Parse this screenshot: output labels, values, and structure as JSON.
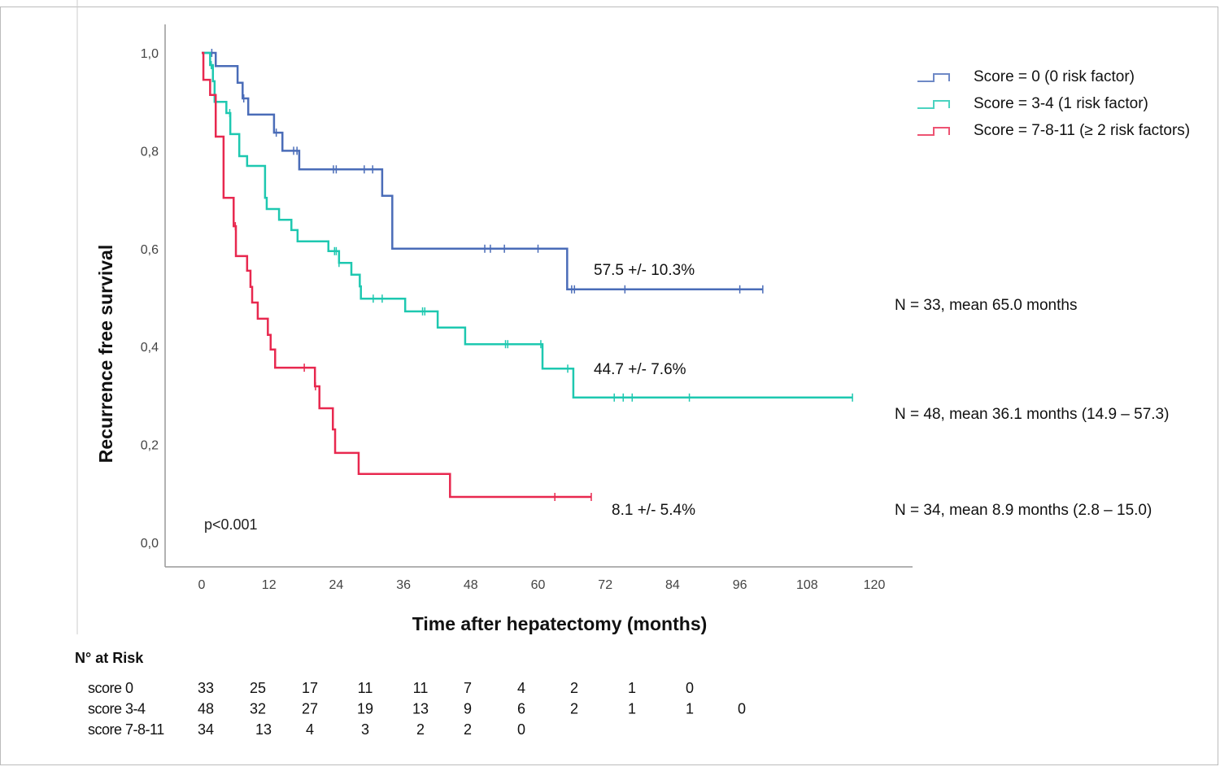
{
  "chart_data": {
    "type": "line",
    "subtype": "kaplan-meier step",
    "ylabel": "Recurrence free survival",
    "xlabel": "Time after hepatectomy (months)",
    "xlim": [
      0,
      120
    ],
    "ylim": [
      0,
      1
    ],
    "x_ticks": [
      "0",
      "12",
      "24",
      "36",
      "48",
      "60",
      "72",
      "84",
      "96",
      "108",
      "120"
    ],
    "y_ticks": [
      "0,0",
      "0,2",
      "0,4",
      "0,6",
      "0,8",
      "1,0"
    ],
    "grid": false,
    "legend_placement": "top-right",
    "p_value": "p<0.001",
    "series": [
      {
        "name": "Score = 0 (0 risk factor)",
        "color": "#4a6cb8",
        "steps": [
          [
            0,
            1.0
          ],
          [
            2.5,
            0.973
          ],
          [
            6.4,
            0.939
          ],
          [
            7.3,
            0.907
          ],
          [
            8.3,
            0.874
          ],
          [
            12.9,
            0.837
          ],
          [
            14.4,
            0.8
          ],
          [
            17.4,
            0.762
          ],
          [
            32.2,
            0.708
          ],
          [
            34,
            0.6
          ],
          [
            65.2,
            0.517
          ]
        ],
        "end": 100.1,
        "censored": [
          1.8,
          7.5,
          13.3,
          16.4,
          17,
          23.5,
          24,
          29,
          30.5,
          50.5,
          51.5,
          54,
          60,
          66,
          66.5,
          75.5,
          96,
          100.1
        ],
        "annotation": "57.5 +/- 10.3%",
        "summary": "N = 33, mean 65.0 months"
      },
      {
        "name": "Score = 3-4 (1 risk factor)",
        "color": "#1ec8b0",
        "steps": [
          [
            0,
            1.0
          ],
          [
            1.5,
            0.975
          ],
          [
            2,
            0.942
          ],
          [
            2.3,
            0.9
          ],
          [
            4.4,
            0.877
          ],
          [
            5.1,
            0.834
          ],
          [
            6.7,
            0.789
          ],
          [
            8.1,
            0.769
          ],
          [
            11.3,
            0.704
          ],
          [
            11.6,
            0.681
          ],
          [
            13.8,
            0.659
          ],
          [
            16,
            0.638
          ],
          [
            17.1,
            0.615
          ],
          [
            22.6,
            0.595
          ],
          [
            24.5,
            0.571
          ],
          [
            26.7,
            0.547
          ],
          [
            28.2,
            0.523
          ],
          [
            28.4,
            0.498
          ],
          [
            36.3,
            0.472
          ],
          [
            42.1,
            0.439
          ],
          [
            47,
            0.405
          ],
          [
            60.8,
            0.355
          ],
          [
            66.3,
            0.296
          ]
        ],
        "end": 116.1,
        "censored": [
          1.7,
          2.5,
          5,
          23.7,
          24,
          24.5,
          30.6,
          32.2,
          39.4,
          39.8,
          54.2,
          54.6,
          60.5,
          65.3,
          73.6,
          75.2,
          76.8,
          87,
          116.1
        ],
        "annotation": "44.7 +/- 7.6%",
        "summary": "N = 48, mean 36.1 months (14.9 – 57.3)"
      },
      {
        "name": "Score = 7-8-11 (≥ 2 risk factors)",
        "color": "#e8284f",
        "steps": [
          [
            0,
            1.0
          ],
          [
            0.3,
            0.945
          ],
          [
            1.5,
            0.914
          ],
          [
            2.5,
            0.829
          ],
          [
            3.9,
            0.704
          ],
          [
            5.7,
            0.646
          ],
          [
            6.1,
            0.585
          ],
          [
            8.1,
            0.555
          ],
          [
            8.7,
            0.522
          ],
          [
            9,
            0.49
          ],
          [
            10,
            0.457
          ],
          [
            11.8,
            0.424
          ],
          [
            12.3,
            0.394
          ],
          [
            13.1,
            0.357
          ],
          [
            20.2,
            0.319
          ],
          [
            21,
            0.274
          ],
          [
            23.4,
            0.231
          ],
          [
            23.8,
            0.183
          ],
          [
            28,
            0.14
          ],
          [
            44.3,
            0.093
          ]
        ],
        "end": 69.5,
        "censored": [
          6,
          18.3,
          20.3,
          63,
          69.5
        ],
        "annotation": "8.1 +/- 5.4%",
        "summary": "N = 34, mean 8.9 months (2.8 – 15.0)"
      }
    ]
  },
  "risk_table": {
    "title": "N° at Risk",
    "rows": [
      {
        "label": "score 0",
        "values": [
          "33",
          "25",
          "17",
          "11",
          "11",
          "7",
          "4",
          "2",
          "1",
          "0"
        ]
      },
      {
        "label": "score 3-4",
        "values": [
          "48",
          "32",
          "27",
          "19",
          "13",
          "9",
          "6",
          "2",
          "1",
          "1",
          "0"
        ]
      },
      {
        "label": "score 7-8-11",
        "values": [
          "34",
          "13",
          "4",
          "3",
          "2",
          "2",
          "0"
        ]
      }
    ]
  }
}
